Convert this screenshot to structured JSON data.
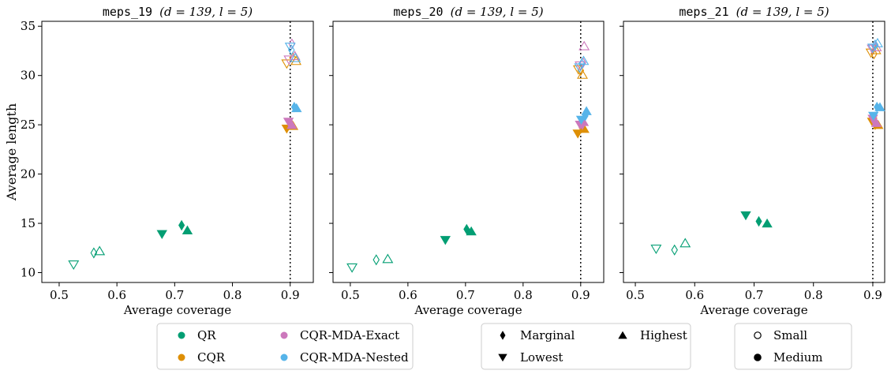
{
  "chart_data": {
    "type": "scatter",
    "ylabel": "Average length",
    "xlabel": "Average coverage",
    "ylim": [
      9,
      35.5
    ],
    "yticks": [
      10,
      15,
      20,
      25,
      30,
      35
    ],
    "reference_line_x": 0.9,
    "methods": [
      {
        "name": "QR",
        "color": "#029e73"
      },
      {
        "name": "CQR",
        "color": "#de8f05"
      },
      {
        "name": "CQR-MDA-Exact",
        "color": "#cc78bc"
      },
      {
        "name": "CQR-MDA-Nested",
        "color": "#56b4e9"
      }
    ],
    "markers": [
      {
        "name": "Marginal",
        "shape": "diamond"
      },
      {
        "name": "Lowest",
        "shape": "triangle-down"
      },
      {
        "name": "Highest",
        "shape": "triangle-up"
      }
    ],
    "sizes": [
      {
        "name": "Small",
        "style": "hollow"
      },
      {
        "name": "Medium",
        "style": "filled"
      }
    ],
    "panels": [
      {
        "dataset": "meps_19",
        "params": "(d = 139, l = 5)",
        "xlim": [
          0.47,
          0.94
        ],
        "xticks": [
          0.5,
          0.6,
          0.7,
          0.8,
          0.9
        ],
        "points": [
          {
            "m": 0,
            "shape": 1,
            "size": 0,
            "x": 0.525,
            "y": 10.8
          },
          {
            "m": 0,
            "shape": 0,
            "size": 0,
            "x": 0.56,
            "y": 12.0
          },
          {
            "m": 0,
            "shape": 2,
            "size": 0,
            "x": 0.57,
            "y": 12.2
          },
          {
            "m": 0,
            "shape": 1,
            "size": 1,
            "x": 0.678,
            "y": 13.9
          },
          {
            "m": 0,
            "shape": 0,
            "size": 1,
            "x": 0.712,
            "y": 14.8
          },
          {
            "m": 0,
            "shape": 2,
            "size": 1,
            "x": 0.722,
            "y": 14.3
          },
          {
            "m": 1,
            "shape": 1,
            "size": 0,
            "x": 0.894,
            "y": 31.2
          },
          {
            "m": 1,
            "shape": 0,
            "size": 0,
            "x": 0.904,
            "y": 31.8
          },
          {
            "m": 1,
            "shape": 2,
            "size": 0,
            "x": 0.91,
            "y": 31.5
          },
          {
            "m": 2,
            "shape": 1,
            "size": 0,
            "x": 0.898,
            "y": 31.6
          },
          {
            "m": 2,
            "shape": 0,
            "size": 0,
            "x": 0.903,
            "y": 33.2
          },
          {
            "m": 2,
            "shape": 2,
            "size": 0,
            "x": 0.908,
            "y": 32.0
          },
          {
            "m": 3,
            "shape": 1,
            "size": 0,
            "x": 0.9,
            "y": 32.9
          },
          {
            "m": 3,
            "shape": 0,
            "size": 0,
            "x": 0.902,
            "y": 32.6
          },
          {
            "m": 3,
            "shape": 2,
            "size": 0,
            "x": 0.909,
            "y": 31.8
          },
          {
            "m": 1,
            "shape": 1,
            "size": 1,
            "x": 0.894,
            "y": 24.6
          },
          {
            "m": 1,
            "shape": 0,
            "size": 1,
            "x": 0.902,
            "y": 25.1
          },
          {
            "m": 1,
            "shape": 2,
            "size": 1,
            "x": 0.905,
            "y": 24.9
          },
          {
            "m": 2,
            "shape": 1,
            "size": 1,
            "x": 0.897,
            "y": 25.3
          },
          {
            "m": 2,
            "shape": 0,
            "size": 1,
            "x": 0.9,
            "y": 25.2
          },
          {
            "m": 2,
            "shape": 2,
            "size": 1,
            "x": 0.903,
            "y": 25.0
          },
          {
            "m": 3,
            "shape": 0,
            "size": 1,
            "x": 0.907,
            "y": 26.8
          },
          {
            "m": 3,
            "shape": 2,
            "size": 1,
            "x": 0.911,
            "y": 26.7
          }
        ]
      },
      {
        "dataset": "meps_20",
        "params": "(d = 139, l = 5)",
        "xlim": [
          0.47,
          0.94
        ],
        "xticks": [
          0.5,
          0.6,
          0.7,
          0.8,
          0.9
        ],
        "points": [
          {
            "m": 0,
            "shape": 1,
            "size": 0,
            "x": 0.503,
            "y": 10.5
          },
          {
            "m": 0,
            "shape": 0,
            "size": 0,
            "x": 0.545,
            "y": 11.3
          },
          {
            "m": 0,
            "shape": 2,
            "size": 0,
            "x": 0.565,
            "y": 11.4
          },
          {
            "m": 0,
            "shape": 1,
            "size": 1,
            "x": 0.665,
            "y": 13.3
          },
          {
            "m": 0,
            "shape": 0,
            "size": 1,
            "x": 0.702,
            "y": 14.4
          },
          {
            "m": 0,
            "shape": 2,
            "size": 1,
            "x": 0.71,
            "y": 14.2
          },
          {
            "m": 1,
            "shape": 1,
            "size": 0,
            "x": 0.896,
            "y": 30.6
          },
          {
            "m": 1,
            "shape": 0,
            "size": 0,
            "x": 0.9,
            "y": 30.5
          },
          {
            "m": 1,
            "shape": 2,
            "size": 0,
            "x": 0.903,
            "y": 30.1
          },
          {
            "m": 2,
            "shape": 1,
            "size": 0,
            "x": 0.899,
            "y": 31.0
          },
          {
            "m": 2,
            "shape": 0,
            "size": 0,
            "x": 0.904,
            "y": 31.3
          },
          {
            "m": 2,
            "shape": 2,
            "size": 0,
            "x": 0.906,
            "y": 33.0
          },
          {
            "m": 3,
            "shape": 1,
            "size": 0,
            "x": 0.898,
            "y": 30.8
          },
          {
            "m": 3,
            "shape": 0,
            "size": 0,
            "x": 0.902,
            "y": 31.2
          },
          {
            "m": 3,
            "shape": 2,
            "size": 0,
            "x": 0.905,
            "y": 31.5
          },
          {
            "m": 1,
            "shape": 1,
            "size": 1,
            "x": 0.895,
            "y": 24.1
          },
          {
            "m": 1,
            "shape": 0,
            "size": 1,
            "x": 0.902,
            "y": 24.7
          },
          {
            "m": 1,
            "shape": 2,
            "size": 1,
            "x": 0.906,
            "y": 24.6
          },
          {
            "m": 2,
            "shape": 1,
            "size": 1,
            "x": 0.899,
            "y": 25.0
          },
          {
            "m": 2,
            "shape": 0,
            "size": 1,
            "x": 0.903,
            "y": 25.0
          },
          {
            "m": 2,
            "shape": 2,
            "size": 1,
            "x": 0.905,
            "y": 25.3
          },
          {
            "m": 3,
            "shape": 1,
            "size": 1,
            "x": 0.901,
            "y": 25.5
          },
          {
            "m": 3,
            "shape": 0,
            "size": 1,
            "x": 0.908,
            "y": 25.9
          },
          {
            "m": 3,
            "shape": 2,
            "size": 1,
            "x": 0.91,
            "y": 26.4
          }
        ]
      },
      {
        "dataset": "meps_21",
        "params": "(d = 139, l = 5)",
        "xlim": [
          0.48,
          0.92
        ],
        "xticks": [
          0.5,
          0.6,
          0.7,
          0.8,
          0.9
        ],
        "points": [
          {
            "m": 0,
            "shape": 1,
            "size": 0,
            "x": 0.535,
            "y": 12.4
          },
          {
            "m": 0,
            "shape": 0,
            "size": 0,
            "x": 0.566,
            "y": 12.3
          },
          {
            "m": 0,
            "shape": 2,
            "size": 0,
            "x": 0.584,
            "y": 13.0
          },
          {
            "m": 0,
            "shape": 1,
            "size": 1,
            "x": 0.686,
            "y": 15.8
          },
          {
            "m": 0,
            "shape": 0,
            "size": 1,
            "x": 0.708,
            "y": 15.2
          },
          {
            "m": 0,
            "shape": 2,
            "size": 1,
            "x": 0.722,
            "y": 15.0
          },
          {
            "m": 1,
            "shape": 1,
            "size": 0,
            "x": 0.897,
            "y": 32.3
          },
          {
            "m": 1,
            "shape": 0,
            "size": 0,
            "x": 0.902,
            "y": 32.2
          },
          {
            "m": 1,
            "shape": 2,
            "size": 0,
            "x": 0.905,
            "y": 32.6
          },
          {
            "m": 2,
            "shape": 1,
            "size": 0,
            "x": 0.899,
            "y": 32.7
          },
          {
            "m": 2,
            "shape": 0,
            "size": 0,
            "x": 0.903,
            "y": 33.0
          },
          {
            "m": 2,
            "shape": 2,
            "size": 0,
            "x": 0.906,
            "y": 32.9
          },
          {
            "m": 3,
            "shape": 1,
            "size": 0,
            "x": 0.9,
            "y": 32.8
          },
          {
            "m": 3,
            "shape": 0,
            "size": 0,
            "x": 0.904,
            "y": 33.1
          },
          {
            "m": 3,
            "shape": 2,
            "size": 0,
            "x": 0.908,
            "y": 33.3
          },
          {
            "m": 1,
            "shape": 1,
            "size": 1,
            "x": 0.899,
            "y": 25.3
          },
          {
            "m": 1,
            "shape": 0,
            "size": 1,
            "x": 0.904,
            "y": 25.0
          },
          {
            "m": 1,
            "shape": 2,
            "size": 1,
            "x": 0.909,
            "y": 25.0
          },
          {
            "m": 2,
            "shape": 1,
            "size": 1,
            "x": 0.9,
            "y": 25.6
          },
          {
            "m": 2,
            "shape": 0,
            "size": 1,
            "x": 0.902,
            "y": 25.4
          },
          {
            "m": 2,
            "shape": 2,
            "size": 1,
            "x": 0.906,
            "y": 25.2
          },
          {
            "m": 3,
            "shape": 1,
            "size": 1,
            "x": 0.901,
            "y": 25.9
          },
          {
            "m": 3,
            "shape": 0,
            "size": 1,
            "x": 0.907,
            "y": 26.8
          },
          {
            "m": 3,
            "shape": 2,
            "size": 1,
            "x": 0.912,
            "y": 26.8
          }
        ]
      }
    ]
  }
}
